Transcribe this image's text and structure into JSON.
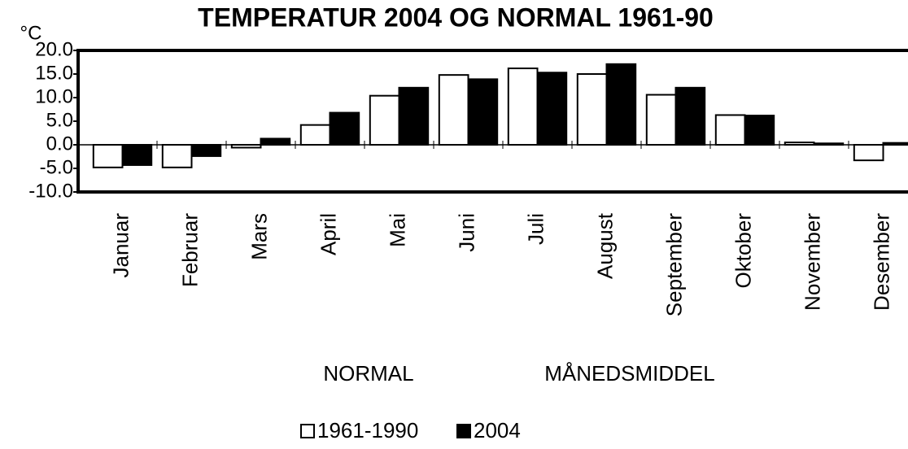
{
  "chart_data": {
    "type": "bar",
    "title": "TEMPERATUR 2004 OG NORMAL 1961-90",
    "unit_label": "°C",
    "annotations": [
      "NORMAL",
      "MÅNEDSMIDDEL"
    ],
    "categories": [
      "Januar",
      "Februar",
      "Mars",
      "April",
      "Mai",
      "Juni",
      "Juli",
      "August",
      "September",
      "Oktober",
      "November",
      "Desember"
    ],
    "series": [
      {
        "name": "1961-1990",
        "color": "#ffffff",
        "values": [
          -4.8,
          -4.8,
          -0.6,
          4.2,
          10.4,
          14.8,
          16.2,
          15.0,
          10.6,
          6.3,
          0.5,
          -3.3
        ]
      },
      {
        "name": "2004",
        "color": "#000000",
        "values": [
          -4.3,
          -2.4,
          1.3,
          6.8,
          12.1,
          13.9,
          15.3,
          17.1,
          12.1,
          6.2,
          0.3,
          0.4
        ]
      }
    ],
    "ylim": [
      -10,
      20
    ],
    "yticks": [
      {
        "value": -10,
        "label": "-10.0"
      },
      {
        "value": -5,
        "label": "-5.0"
      },
      {
        "value": 0,
        "label": "0.0"
      },
      {
        "value": 5,
        "label": "5.0"
      },
      {
        "value": 10,
        "label": "10.0"
      },
      {
        "value": 15,
        "label": "15.0"
      },
      {
        "value": 20,
        "label": "20.0"
      }
    ]
  }
}
